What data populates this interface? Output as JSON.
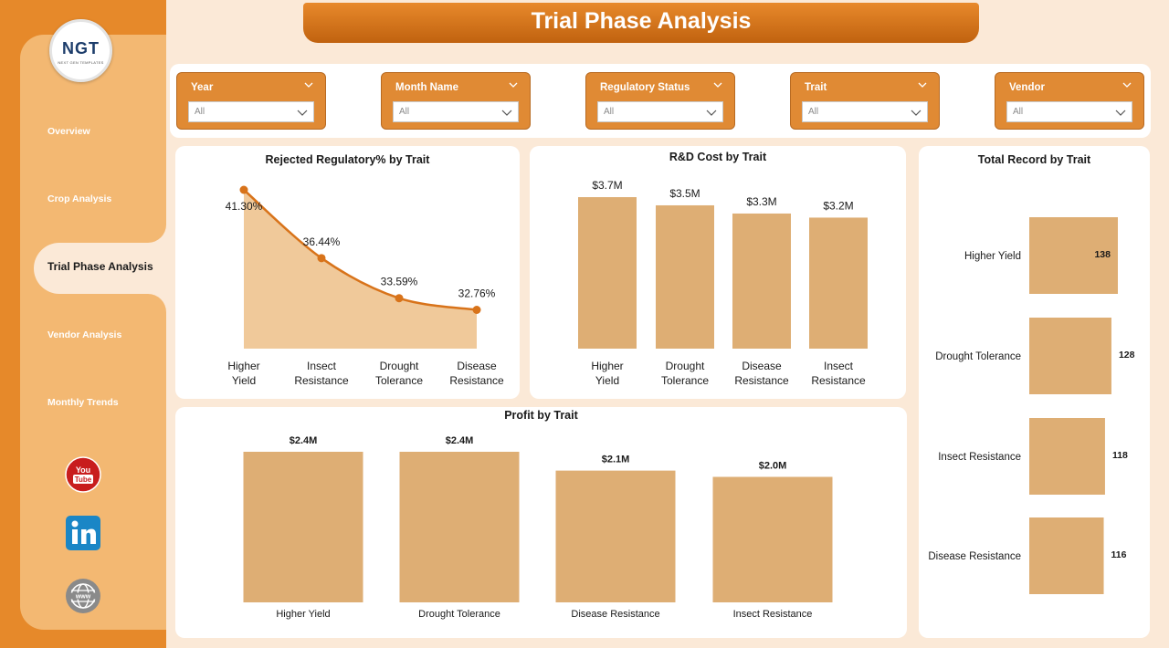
{
  "app": {
    "title": "Trial Phase Analysis",
    "logo_text": "NGT",
    "logo_subtext": "NEXT GEN TEMPLATES"
  },
  "colors": {
    "primary_orange": "#e08a34",
    "sidebar_light": "#f3b872",
    "bar_fill": "#deae74",
    "line": "#d8731a",
    "background": "#fbe9d7"
  },
  "sidebar": {
    "items": [
      {
        "label": "Overview"
      },
      {
        "label": "Crop Analysis"
      },
      {
        "label": "Trial Phase Analysis",
        "active": true
      },
      {
        "label": "Vendor Analysis"
      },
      {
        "label": "Monthly Trends"
      }
    ],
    "social": [
      {
        "icon": "youtube-icon",
        "text": "You Tube"
      },
      {
        "icon": "linkedin-icon",
        "text": "in"
      },
      {
        "icon": "globe-icon",
        "text": "www"
      }
    ]
  },
  "filters": [
    {
      "label": "Year",
      "value": "All"
    },
    {
      "label": "Month Name",
      "value": "All"
    },
    {
      "label": "Regulatory Status",
      "value": "All"
    },
    {
      "label": "Trait",
      "value": "All"
    },
    {
      "label": "Vendor",
      "value": "All"
    }
  ],
  "chart_data": [
    {
      "type": "area",
      "title": "Rejected Regulatory% by Trait",
      "categories": [
        "Higher Yield",
        "Insect Resistance",
        "Drought Tolerance",
        "Disease Resistance"
      ],
      "values": [
        41.3,
        36.44,
        33.59,
        32.76
      ],
      "value_labels": [
        "41.30%",
        "36.44%",
        "33.59%",
        "32.76%"
      ],
      "unit": "%"
    },
    {
      "type": "bar",
      "title": "R&D Cost by Trait",
      "categories": [
        "Higher Yield",
        "Drought Tolerance",
        "Disease Resistance",
        "Insect Resistance"
      ],
      "values": [
        3.7,
        3.5,
        3.3,
        3.2
      ],
      "value_labels": [
        "$3.7M",
        "$3.5M",
        "$3.3M",
        "$3.2M"
      ],
      "unit": "$M"
    },
    {
      "type": "bar",
      "title": "Profit by Trait",
      "categories": [
        "Higher Yield",
        "Drought Tolerance",
        "Disease Resistance",
        "Insect Resistance"
      ],
      "values": [
        2.4,
        2.4,
        2.1,
        2.0
      ],
      "value_labels": [
        "$2.4M",
        "$2.4M",
        "$2.1M",
        "$2.0M"
      ],
      "unit": "$M"
    },
    {
      "type": "bar",
      "orientation": "horizontal",
      "title": "Total Record by Trait",
      "categories": [
        "Higher Yield",
        "Drought Tolerance",
        "Insect Resistance",
        "Disease Resistance"
      ],
      "values": [
        138,
        128,
        118,
        116
      ],
      "value_labels": [
        "138",
        "128",
        "118",
        "116"
      ]
    }
  ]
}
